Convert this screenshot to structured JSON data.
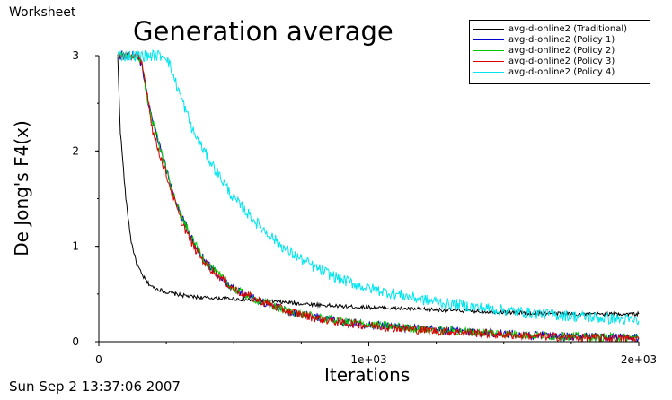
{
  "window": {
    "worksheet_label": "Worksheet"
  },
  "footer": {
    "timestamp": "Sun Sep 2 13:37:06 2007"
  },
  "chart_data": {
    "type": "line",
    "title": "Generation average",
    "xlabel": "Iterations",
    "ylabel": "De Jong's F4(x)",
    "xlim": [
      0,
      2000
    ],
    "ylim": [
      0,
      3
    ],
    "x_ticks": [
      {
        "value": 0,
        "label": "0"
      },
      {
        "value": 1000,
        "label": "1e+03"
      },
      {
        "value": 2000,
        "label": "2e+03"
      }
    ],
    "y_ticks": [
      {
        "value": 0,
        "label": "0"
      },
      {
        "value": 1,
        "label": "1"
      },
      {
        "value": 2,
        "label": "2"
      },
      {
        "value": 3,
        "label": "3"
      }
    ],
    "legend_position": "top-right",
    "x": [
      70,
      80,
      100,
      120,
      140,
      160,
      180,
      200,
      250,
      300,
      350,
      400,
      500,
      600,
      700,
      800,
      900,
      1000,
      1200,
      1400,
      1600,
      1800,
      2000
    ],
    "series": [
      {
        "name": "avg-d-online2 (Traditional)",
        "color": "#000000",
        "values": [
          3.0,
          2.2,
          1.5,
          1.05,
          0.82,
          0.7,
          0.62,
          0.57,
          0.52,
          0.49,
          0.47,
          0.46,
          0.45,
          0.43,
          0.41,
          0.39,
          0.37,
          0.36,
          0.34,
          0.32,
          0.3,
          0.29,
          0.29
        ]
      },
      {
        "name": "avg-d-online2 (Policy 1)",
        "color": "#0000cc",
        "values": [
          3.0,
          3.0,
          3.0,
          3.0,
          3.0,
          2.9,
          2.55,
          2.3,
          1.8,
          1.35,
          1.05,
          0.82,
          0.55,
          0.42,
          0.32,
          0.26,
          0.21,
          0.18,
          0.13,
          0.1,
          0.07,
          0.05,
          0.04
        ]
      },
      {
        "name": "avg-d-online2 (Policy 2)",
        "color": "#00cc00",
        "values": [
          3.0,
          3.0,
          3.0,
          3.0,
          3.0,
          2.9,
          2.55,
          2.3,
          1.8,
          1.35,
          1.05,
          0.82,
          0.55,
          0.42,
          0.32,
          0.26,
          0.21,
          0.18,
          0.13,
          0.1,
          0.07,
          0.05,
          0.04
        ]
      },
      {
        "name": "avg-d-online2 (Policy 3)",
        "color": "#dd0000",
        "values": [
          3.0,
          3.0,
          3.0,
          3.0,
          3.0,
          2.9,
          2.6,
          2.2,
          1.75,
          1.3,
          1.0,
          0.8,
          0.55,
          0.42,
          0.32,
          0.25,
          0.2,
          0.17,
          0.12,
          0.09,
          0.06,
          0.04,
          0.03
        ]
      },
      {
        "name": "avg-d-online2 (Policy 4)",
        "color": "#00e5ee",
        "values": [
          3.0,
          3.0,
          3.0,
          3.0,
          3.0,
          3.0,
          3.0,
          3.0,
          3.0,
          2.6,
          2.2,
          1.95,
          1.5,
          1.2,
          0.95,
          0.78,
          0.65,
          0.56,
          0.44,
          0.36,
          0.3,
          0.26,
          0.22
        ]
      }
    ]
  }
}
